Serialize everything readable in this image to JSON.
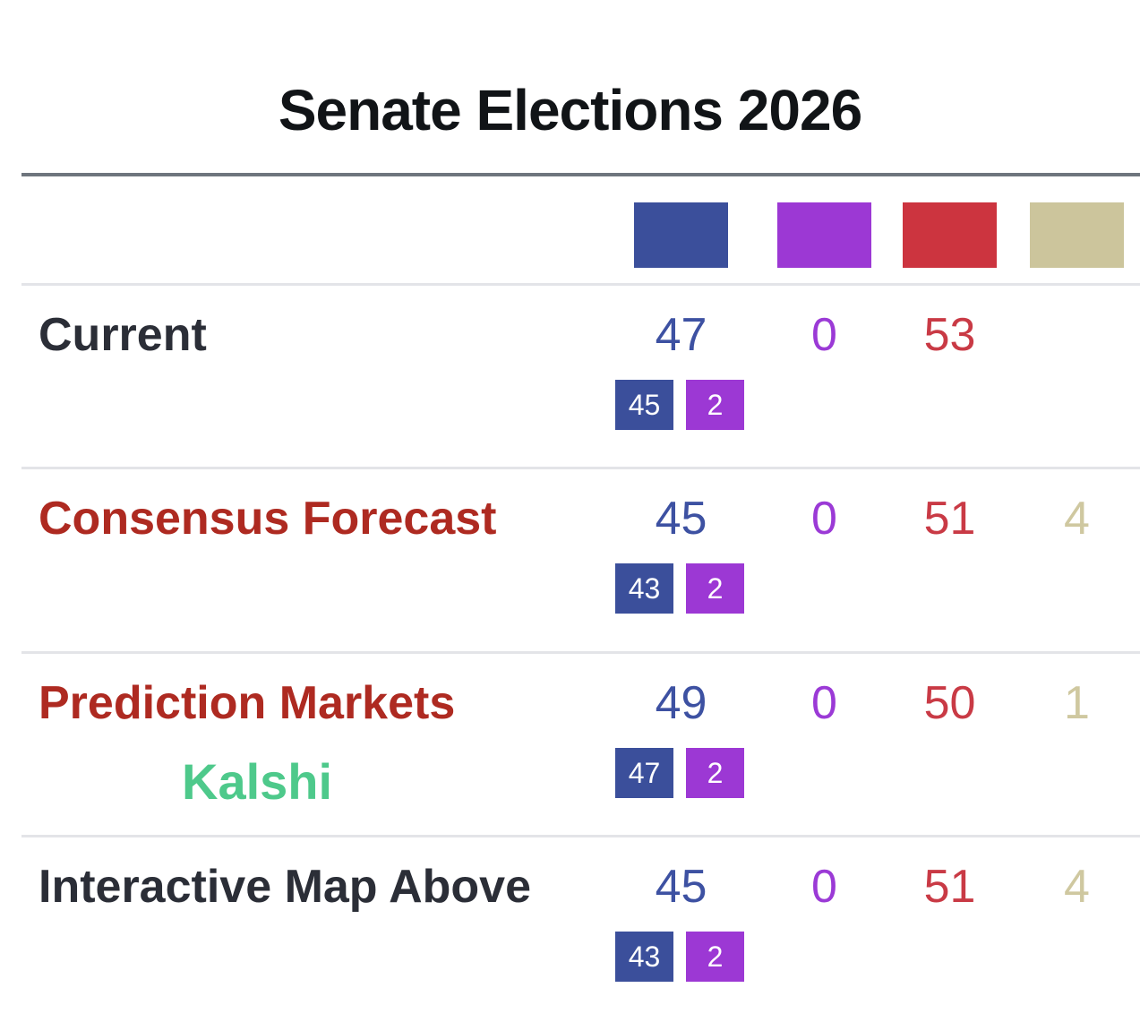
{
  "title": "Senate Elections 2026",
  "colors": {
    "blue": "#3b4f9b",
    "purple": "#9c38d4",
    "red": "#cc343f",
    "tan": "#ccc59c",
    "blue_text": "#3d51a2",
    "purple_text": "#9b3ad6",
    "red_text": "#c93a45",
    "tan_text": "#cfc8a0",
    "label_dark": "#2b2e37",
    "label_red": "#ae2a21",
    "kalshi_green": "#4ec98b",
    "divider_dark": "#6e757d",
    "divider_light": "#e3e4e8"
  },
  "chart_data": {
    "type": "table",
    "title": "Senate Elections 2026",
    "columns": [
      {
        "name": "blue-square",
        "swatch_color": "#3b4f9b"
      },
      {
        "name": "purple-square",
        "swatch_color": "#9c38d4"
      },
      {
        "name": "red-square",
        "swatch_color": "#cc343f"
      },
      {
        "name": "tan-square",
        "swatch_color": "#ccc59c"
      }
    ],
    "rows": [
      {
        "label": "Current",
        "values": [
          47,
          0,
          53,
          null
        ],
        "sub_values": [
          45,
          2
        ]
      },
      {
        "label": "Consensus Forecast",
        "values": [
          45,
          0,
          51,
          4
        ],
        "sub_values": [
          43,
          2
        ]
      },
      {
        "label": "Prediction Markets",
        "sublabel": "Kalshi",
        "values": [
          49,
          0,
          50,
          1
        ],
        "sub_values": [
          47,
          2
        ]
      },
      {
        "label": "Interactive Map Above",
        "values": [
          45,
          0,
          51,
          4
        ],
        "sub_values": [
          43,
          2
        ]
      }
    ]
  }
}
